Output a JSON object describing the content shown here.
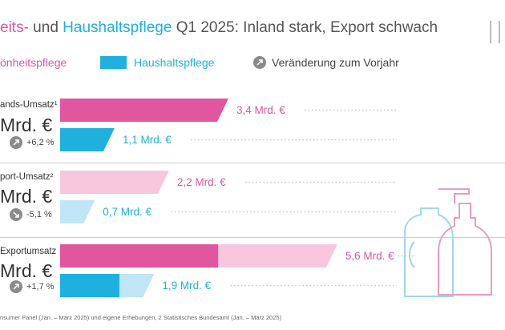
{
  "header": {
    "title_part1": "eits-",
    "title_part2": " und ",
    "title_part3": "Haushaltspflege",
    "title_part4": " Q1 2025: Inland stark, Export schwach"
  },
  "legend": {
    "beauty": "önheitspflege",
    "household": "Haushaltspflege",
    "change": "Veränderung zum Vorjahr"
  },
  "colors": {
    "beauty": "#e0569f",
    "beauty_light": "#f7c6dd",
    "household": "#1fb0de",
    "household_light": "#bfe5f6",
    "grey": "#8a8a8a"
  },
  "chart_data": {
    "type": "bar",
    "categories": [
      "ands-Umsatz¹",
      "port-Umsatz²",
      "Exportumsatz"
    ],
    "series": [
      {
        "name": "önheitspflege",
        "values": [
          3.4,
          2.2,
          5.6
        ],
        "labels": [
          "3,4 Mrd. €",
          "2,2 Mrd. €",
          "5,6 Mrd. €"
        ]
      },
      {
        "name": "Haushaltspflege",
        "values": [
          1.1,
          0.7,
          1.9
        ],
        "labels": [
          "1,1 Mrd. €",
          "0,7 Mrd. €",
          "1,9 Mrd. €"
        ]
      }
    ],
    "totals": [
      "Mrd. €",
      "Mrd. €",
      "Mrd. €"
    ],
    "changes": [
      "+6,2 %",
      "-5,1 %",
      "+1,7 %"
    ],
    "change_direction": [
      "up",
      "down",
      "up"
    ]
  },
  "footnote": "nsumer Panel (Jan. – März 2025) und eigene Erhebungen,  2 Statistisches Bundesamt (Jan. – März 2025)"
}
